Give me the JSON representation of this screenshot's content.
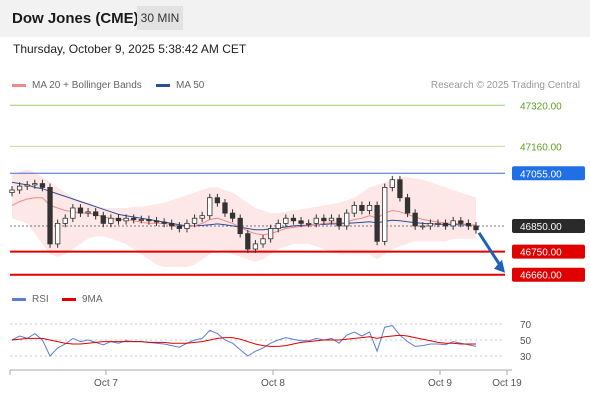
{
  "header": {
    "title": "Dow Jones (CME)",
    "timeframe": "30 MIN"
  },
  "datetime": "Thursday, October 9, 2025 5:38:42 AM CET",
  "legend": {
    "bollinger": {
      "label": "MA 20 + Bollinger Bands",
      "color": "#f08a8a"
    },
    "ma50": {
      "label": "MA 50",
      "color": "#2a4f9a"
    }
  },
  "credit": "Research © 2025 Trading Central",
  "rsi_legend": {
    "rsi": {
      "label": "RSI",
      "color": "#5b7fd6"
    },
    "ma9": {
      "label": "9MA",
      "color": "#e00000"
    }
  },
  "chart_data": [
    {
      "type": "line",
      "x_ticks": [
        "Oct 7",
        "Oct 8",
        "Oct 9",
        "Oct 19"
      ],
      "levels": [
        {
          "label": "47320.00",
          "value": 47320,
          "color": "#9ccb6a",
          "label_bg": "none",
          "label_color": "#5fa021"
        },
        {
          "label": "47160.00",
          "value": 47160,
          "color": "#c6dd9a",
          "label_bg": "none",
          "label_color": "#5fa021"
        },
        {
          "label": "47055.00",
          "value": 47055,
          "color": "#3f6fd8",
          "label_bg": "#1f6fe6",
          "label_color": "#ffffff"
        },
        {
          "label": "46850.00",
          "value": 46850,
          "color": "#777777",
          "label_bg": "#2a2a2a",
          "label_color": "#ffffff",
          "dotted": true
        },
        {
          "label": "46750.00",
          "value": 46750,
          "color": "#e00000",
          "label_bg": "#e00000",
          "label_color": "#ffffff"
        },
        {
          "label": "46660.00",
          "value": 46660,
          "color": "#e00000",
          "label_bg": "#e00000",
          "label_color": "#ffffff"
        }
      ],
      "price": [
        46990,
        47005,
        47010,
        47015,
        47000,
        46780,
        46860,
        46880,
        46920,
        46900,
        46905,
        46890,
        46860,
        46880,
        46870,
        46880,
        46875,
        46875,
        46870,
        46865,
        46860,
        46850,
        46840,
        46860,
        46880,
        46890,
        46960,
        46940,
        46900,
        46880,
        46820,
        46760,
        46780,
        46800,
        46840,
        46860,
        46880,
        46870,
        46860,
        46860,
        46880,
        46870,
        46880,
        46850,
        46900,
        46930,
        46910,
        46930,
        46790,
        47000,
        47030,
        46960,
        46900,
        46850,
        46850,
        46860,
        46860,
        46850,
        46870,
        46860,
        46850,
        46835
      ],
      "ma20": [
        46930,
        46945,
        46955,
        46960,
        46960,
        46930,
        46920,
        46910,
        46905,
        46900,
        46900,
        46895,
        46885,
        46880,
        46875,
        46875,
        46870,
        46865,
        46860,
        46860,
        46860,
        46855,
        46850,
        46845,
        46850,
        46860,
        46875,
        46880,
        46870,
        46860,
        46845,
        46830,
        46820,
        46815,
        46820,
        46830,
        46840,
        46845,
        46848,
        46850,
        46855,
        46860,
        46862,
        46860,
        46865,
        46875,
        46880,
        46890,
        46880,
        46900,
        46910,
        46905,
        46895,
        46885,
        46875,
        46870,
        46865,
        46862,
        46860,
        46858,
        46855,
        46852
      ],
      "ma50": [
        47020,
        47015,
        47010,
        47000,
        46995,
        46985,
        46975,
        46965,
        46955,
        46945,
        46935,
        46925,
        46915,
        46905,
        46895,
        46890,
        46885,
        46880,
        46875,
        46870,
        46865,
        46860,
        46855,
        46850,
        46850,
        46852,
        46855,
        46858,
        46855,
        46850,
        46845,
        46840,
        46835,
        46835,
        46838,
        46842,
        46846,
        46850,
        46852,
        46853,
        46855,
        46856,
        46858,
        46858,
        46860,
        46862,
        46864,
        46866,
        46862,
        46868,
        46872,
        46870,
        46866,
        46863,
        46860,
        46858,
        46857,
        46856,
        46855,
        46855,
        46854,
        46853
      ],
      "bb_upper": [
        47050,
        47060,
        47070,
        47060,
        47040,
        47020,
        47000,
        46980,
        46960,
        46950,
        46940,
        46930,
        46920,
        46920,
        46920,
        46920,
        46925,
        46925,
        46930,
        46935,
        46940,
        46950,
        46960,
        46970,
        46980,
        46990,
        47000,
        47000,
        46990,
        46980,
        46960,
        46940,
        46920,
        46910,
        46900,
        46900,
        46905,
        46910,
        46915,
        46920,
        46925,
        46930,
        46935,
        46940,
        46950,
        46960,
        46980,
        47000,
        47010,
        47020,
        47030,
        47040,
        47040,
        47035,
        47030,
        47020,
        47010,
        47000,
        46990,
        46980,
        46970,
        46960
      ],
      "bb_lower": [
        46880,
        46870,
        46860,
        46820,
        46780,
        46740,
        46730,
        46740,
        46760,
        46780,
        46800,
        46810,
        46810,
        46800,
        46790,
        46780,
        46760,
        46740,
        46720,
        46700,
        46690,
        46690,
        46690,
        46690,
        46700,
        46720,
        46740,
        46760,
        46750,
        46740,
        46730,
        46720,
        46710,
        46720,
        46740,
        46760,
        46770,
        46780,
        46780,
        46780,
        46770,
        46760,
        46750,
        46740,
        46740,
        46740,
        46740,
        46740,
        46720,
        46740,
        46760,
        46770,
        46780,
        46790,
        46790,
        46790,
        46790,
        46790,
        46800,
        46800,
        46800,
        46800
      ],
      "ylim": [
        46620,
        47360
      ]
    },
    {
      "type": "line",
      "ticks": [
        "70",
        "50",
        "30"
      ],
      "ylim": [
        20,
        80
      ],
      "rsi": [
        50,
        55,
        52,
        58,
        50,
        30,
        40,
        45,
        52,
        48,
        50,
        47,
        44,
        48,
        46,
        49,
        48,
        48,
        47,
        46,
        45,
        43,
        41,
        46,
        50,
        52,
        62,
        58,
        50,
        46,
        38,
        30,
        36,
        40,
        46,
        50,
        53,
        51,
        49,
        49,
        52,
        50,
        52,
        46,
        56,
        60,
        55,
        60,
        36,
        66,
        68,
        56,
        48,
        42,
        43,
        45,
        45,
        44,
        48,
        46,
        44,
        42
      ],
      "ma9": [
        50,
        51,
        52,
        52,
        52,
        50,
        48,
        46,
        45,
        45,
        46,
        47,
        48,
        48,
        48,
        48,
        48,
        48,
        47,
        47,
        47,
        46,
        46,
        46,
        47,
        48,
        50,
        52,
        53,
        53,
        51,
        48,
        45,
        43,
        42,
        42,
        43,
        45,
        47,
        48,
        49,
        50,
        50,
        50,
        51,
        52,
        53,
        54,
        52,
        54,
        55,
        56,
        55,
        53,
        51,
        49,
        47,
        46,
        46,
        45,
        45,
        45
      ]
    }
  ]
}
